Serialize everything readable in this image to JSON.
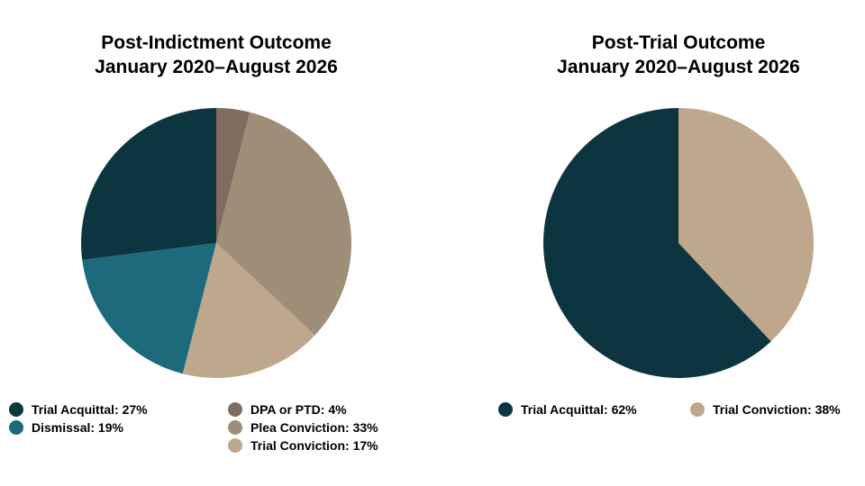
{
  "chart_data": [
    {
      "type": "pie",
      "title": [
        "Post-Indictment Outcome",
        "January 2020–August 2026"
      ],
      "slices": [
        {
          "label": "DPA or PTD",
          "value": 4,
          "legend": "DPA or PTD: 4%",
          "color": "#7f6e60"
        },
        {
          "label": "Plea Conviction",
          "value": 33,
          "legend": "Plea Conviction: 33%",
          "color": "#9e8e78"
        },
        {
          "label": "Trial Conviction",
          "value": 17,
          "legend": "Trial Conviction: 17%",
          "color": "#bfa78e"
        },
        {
          "label": "Dismissal",
          "value": 19,
          "legend": "Dismissal: 19%",
          "color": "#1d6a7c"
        },
        {
          "label": "Trial Acquittal",
          "value": 27,
          "legend": "Trial Acquittal: 27%",
          "color": "#0d3540"
        }
      ]
    },
    {
      "type": "pie",
      "title": [
        "Post-Trial Outcome",
        "January 2020–August 2026"
      ],
      "slices": [
        {
          "label": "Trial Conviction",
          "value": 38,
          "legend": "Trial Conviction: 38%",
          "color": "#bfa78e"
        },
        {
          "label": "Trial Acquittal",
          "value": 62,
          "legend": "Trial Acquittal: 62%",
          "color": "#0d3540"
        }
      ]
    }
  ]
}
